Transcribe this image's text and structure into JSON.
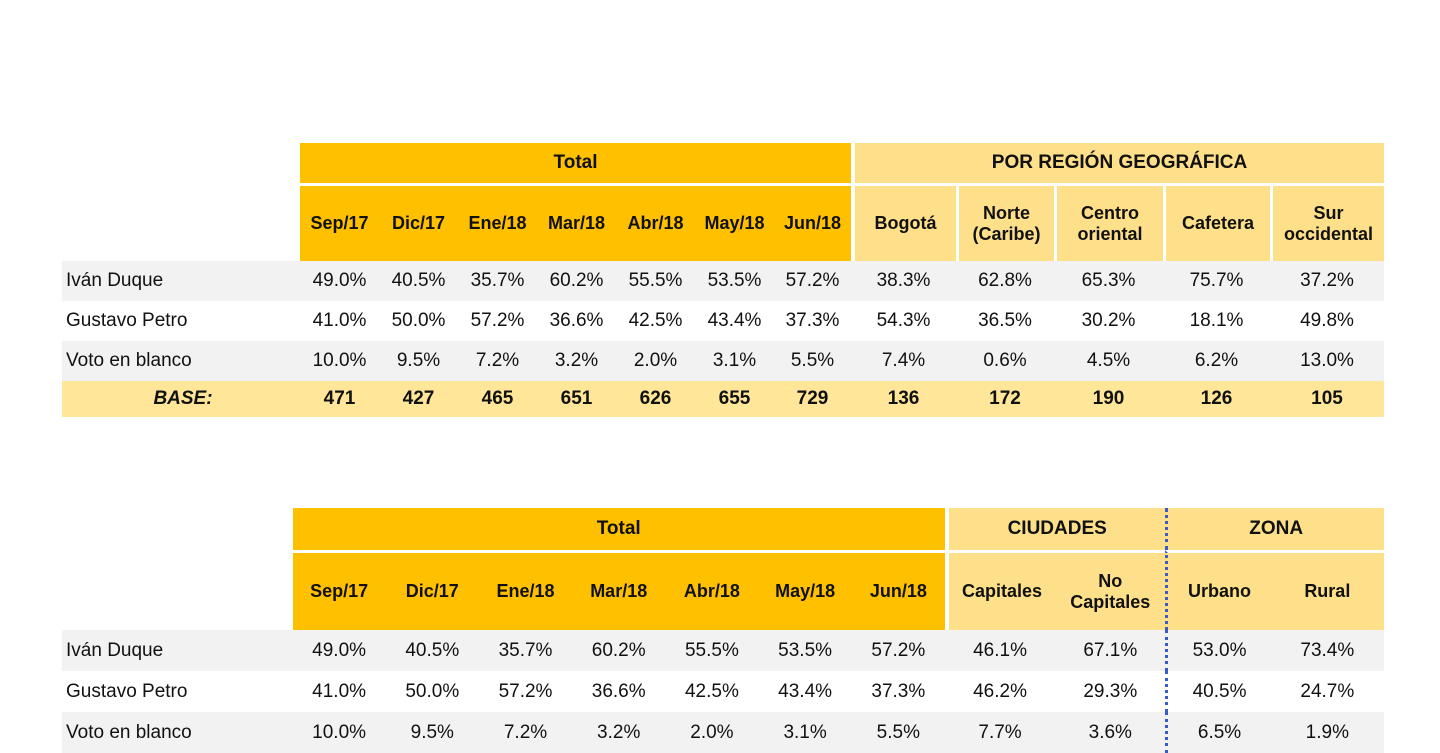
{
  "table1": {
    "group_total": "Total",
    "group_region": "POR REGIÓN GEOGRÁFICA",
    "months": [
      "Sep/17",
      "Dic/17",
      "Ene/18",
      "Mar/18",
      "Abr/18",
      "May/18",
      "Jun/18"
    ],
    "regions": [
      {
        "line1": "Bogotá",
        "line2": ""
      },
      {
        "line1": "Norte",
        "line2": "(Caribe)"
      },
      {
        "line1": "Centro",
        "line2": "oriental"
      },
      {
        "line1": "Cafetera",
        "line2": ""
      },
      {
        "line1": "Sur",
        "line2": "occidental"
      }
    ],
    "rows": [
      {
        "label": "Iván Duque",
        "values": [
          "49.0%",
          "40.5%",
          "35.7%",
          "60.2%",
          "55.5%",
          "53.5%",
          "57.2%",
          "38.3%",
          "62.8%",
          "65.3%",
          "75.7%",
          "37.2%"
        ]
      },
      {
        "label": "Gustavo Petro",
        "values": [
          "41.0%",
          "50.0%",
          "57.2%",
          "36.6%",
          "42.5%",
          "43.4%",
          "37.3%",
          "54.3%",
          "36.5%",
          "30.2%",
          "18.1%",
          "49.8%"
        ]
      },
      {
        "label": "Voto en blanco",
        "values": [
          "10.0%",
          "9.5%",
          "7.2%",
          "3.2%",
          "2.0%",
          "3.1%",
          "5.5%",
          "7.4%",
          "0.6%",
          "4.5%",
          "6.2%",
          "13.0%"
        ]
      }
    ],
    "base": {
      "label": "BASE:",
      "values": [
        "471",
        "427",
        "465",
        "651",
        "626",
        "655",
        "729",
        "136",
        "172",
        "190",
        "126",
        "105"
      ]
    }
  },
  "table2": {
    "group_total": "Total",
    "group_ciudades": "CIUDADES",
    "group_zona": "ZONA",
    "months": [
      "Sep/17",
      "Dic/17",
      "Ene/18",
      "Mar/18",
      "Abr/18",
      "May/18",
      "Jun/18"
    ],
    "ciudades": [
      {
        "line1": "Capitales",
        "line2": ""
      },
      {
        "line1": "No",
        "line2": "Capitales"
      }
    ],
    "zona": [
      "Urbano",
      "Rural"
    ],
    "rows": [
      {
        "label": "Iván Duque",
        "values": [
          "49.0%",
          "40.5%",
          "35.7%",
          "60.2%",
          "55.5%",
          "53.5%",
          "57.2%",
          "46.1%",
          "67.1%",
          "53.0%",
          "73.4%"
        ]
      },
      {
        "label": "Gustavo Petro",
        "values": [
          "41.0%",
          "50.0%",
          "57.2%",
          "36.6%",
          "42.5%",
          "43.4%",
          "37.3%",
          "46.2%",
          "29.3%",
          "40.5%",
          "24.7%"
        ]
      },
      {
        "label": "Voto en blanco",
        "values": [
          "10.0%",
          "9.5%",
          "7.2%",
          "3.2%",
          "2.0%",
          "3.1%",
          "5.5%",
          "7.7%",
          "3.6%",
          "6.5%",
          "1.9%"
        ]
      }
    ]
  }
}
